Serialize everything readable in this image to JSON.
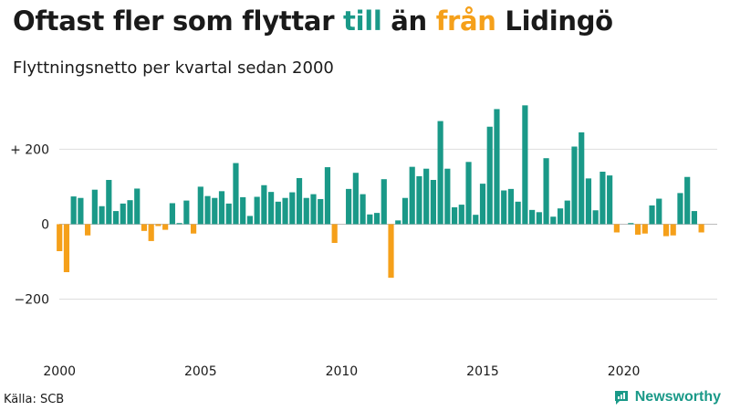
{
  "header": {
    "title_parts": [
      "Oftast fler som flyttar ",
      "till",
      " än ",
      "från",
      " Lidingö"
    ],
    "subtitle": "Flyttningsnetto per kvartal sedan 2000"
  },
  "footer": {
    "source": "Källa: SCB",
    "brand": "Newsworthy"
  },
  "colors": {
    "positive": "#1a9988",
    "negative": "#f5a01a",
    "grid": "#dddddd",
    "zero_line": "#bbbbbb",
    "text": "#1a1a1a"
  },
  "icons": {
    "brand": "newsworthy-logo-icon"
  },
  "chart_data": {
    "type": "bar",
    "xlabel": "",
    "ylabel": "",
    "ylim": [
      -340,
      330
    ],
    "grid": "horizontal",
    "y_ticks": [
      {
        "value": 200,
        "label": "+ 200"
      },
      {
        "value": 0,
        "label": "0"
      },
      {
        "value": -200,
        "label": "−200"
      }
    ],
    "x_ticks": [
      {
        "value": 2000,
        "label": "2000"
      },
      {
        "value": 2005,
        "label": "2005"
      },
      {
        "value": 2010,
        "label": "2010"
      },
      {
        "value": 2015,
        "label": "2015"
      },
      {
        "value": 2020,
        "label": "2020"
      }
    ],
    "start_year": 2000,
    "start_quarter": 1,
    "quarter_labels": [
      "2000 K1",
      "2000 K2",
      "2000 K3",
      "2000 K4",
      "2001 K1",
      "2001 K2",
      "2001 K3",
      "2001 K4",
      "2002 K1",
      "2002 K2",
      "2002 K3",
      "2002 K4",
      "2003 K1",
      "2003 K2",
      "2003 K3",
      "2003 K4",
      "2004 K1",
      "2004 K2",
      "2004 K3",
      "2004 K4",
      "2005 K1",
      "2005 K2",
      "2005 K3",
      "2005 K4",
      "2006 K1",
      "2006 K2",
      "2006 K3",
      "2006 K4",
      "2007 K1",
      "2007 K2",
      "2007 K3",
      "2007 K4",
      "2008 K1",
      "2008 K2",
      "2008 K3",
      "2008 K4",
      "2009 K1",
      "2009 K2",
      "2009 K3",
      "2009 K4",
      "2010 K1",
      "2010 K2",
      "2010 K3",
      "2010 K4",
      "2011 K1",
      "2011 K2",
      "2011 K3",
      "2011 K4",
      "2012 K1",
      "2012 K2",
      "2012 K3",
      "2012 K4",
      "2013 K1",
      "2013 K2",
      "2013 K3",
      "2013 K4",
      "2014 K1",
      "2014 K2",
      "2014 K3",
      "2014 K4",
      "2015 K1",
      "2015 K2",
      "2015 K3",
      "2015 K4",
      "2016 K1",
      "2016 K2",
      "2016 K3",
      "2016 K4",
      "2017 K1",
      "2017 K2",
      "2017 K3",
      "2017 K4",
      "2018 K1",
      "2018 K2",
      "2018 K3",
      "2018 K4",
      "2019 K1",
      "2019 K2",
      "2019 K3",
      "2019 K4",
      "2020 K1",
      "2020 K2",
      "2020 K3",
      "2020 K4",
      "2021 K1",
      "2021 K2",
      "2021 K3",
      "2021 K4",
      "2022 K1",
      "2022 K2",
      "2022 K3",
      "2022 K4",
      "2023 K1"
    ],
    "values": [
      -72,
      -128,
      74,
      70,
      -30,
      92,
      48,
      118,
      35,
      55,
      64,
      95,
      -18,
      -45,
      -5,
      -15,
      56,
      3,
      63,
      -25,
      100,
      75,
      70,
      88,
      55,
      163,
      72,
      22,
      73,
      104,
      86,
      60,
      70,
      85,
      123,
      70,
      80,
      67,
      152,
      -50,
      0,
      94,
      137,
      80,
      26,
      30,
      120,
      -143,
      10,
      70,
      153,
      128,
      148,
      118,
      275,
      148,
      45,
      52,
      166,
      25,
      108,
      260,
      307,
      90,
      94,
      60,
      317,
      38,
      32,
      176,
      20,
      42,
      63,
      207,
      245,
      122,
      37,
      140,
      130,
      -22,
      0,
      3,
      -28,
      -25,
      50,
      68,
      -32,
      -30,
      83,
      126,
      35,
      -22
    ]
  }
}
